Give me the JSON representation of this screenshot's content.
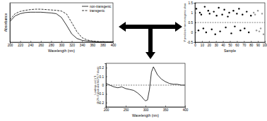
{
  "chart_data": [
    {
      "type": "line",
      "x_label": "Wavelength (nm)",
      "y_label": "Absorbance",
      "x": [
        200,
        210,
        220,
        230,
        240,
        250,
        260,
        270,
        280,
        290,
        300,
        310,
        320,
        330,
        340,
        350,
        360,
        370,
        380,
        390,
        400
      ],
      "xlim": [
        200,
        400
      ],
      "xticks": [
        200,
        220,
        240,
        260,
        280,
        300,
        320,
        340,
        360,
        380,
        400
      ],
      "ylim": [
        0,
        1.05
      ],
      "tick_labels": "x",
      "legend": "upper right",
      "series": [
        {
          "name": "non-transgenic",
          "color": "#000000",
          "line_style": "solid",
          "values": [
            0.55,
            0.7,
            0.76,
            0.79,
            0.8,
            0.8,
            0.8,
            0.79,
            0.78,
            0.76,
            0.66,
            0.45,
            0.22,
            0.1,
            0.05,
            0.03,
            0.02,
            0.01,
            0.01,
            0.01,
            0.01
          ]
        },
        {
          "name": "transgenic",
          "color": "#000000",
          "line_style": "dashed",
          "values": [
            0.6,
            0.76,
            0.82,
            0.85,
            0.87,
            0.88,
            0.88,
            0.87,
            0.86,
            0.85,
            0.83,
            0.75,
            0.52,
            0.28,
            0.12,
            0.06,
            0.03,
            0.02,
            0.01,
            0.01,
            0.01
          ]
        }
      ]
    },
    {
      "type": "scatter",
      "x_label": "Sample",
      "y_label": "Y predicted non-transgenic class",
      "xlim": [
        0,
        100
      ],
      "xticks": [
        0,
        10,
        20,
        30,
        40,
        50,
        60,
        70,
        80,
        90,
        100
      ],
      "ylim": [
        -0.5,
        1.5
      ],
      "yticks": [
        -0.5,
        0,
        0.5,
        1,
        1.5
      ],
      "threshold": 0.5,
      "series": [
        {
          "color": "#000000",
          "marker": "circle",
          "x": [
            2,
            5,
            7,
            9,
            12,
            14,
            16,
            19,
            21,
            24,
            27,
            29,
            31,
            34,
            36,
            39,
            42,
            44,
            47,
            49,
            52,
            55,
            57,
            60,
            63,
            65,
            68,
            71,
            74,
            77,
            80
          ],
          "values": [
            1.2,
            0.1,
            1.0,
            0.9,
            0.2,
            1.3,
            0.0,
            1.1,
            0.95,
            0.15,
            1.05,
            -0.1,
            0.85,
            1.25,
            0.05,
            0.9,
            1.15,
            0.25,
            0.8,
            1.0,
            -0.05,
            1.1,
            0.3,
            0.95,
            1.2,
            0.1,
            0.9,
            0.2,
            1.05,
            0.0,
            0.85
          ]
        },
        {
          "color": "#999999",
          "marker": "circle",
          "x": [
            84,
            86,
            88,
            90,
            92,
            94,
            96,
            98
          ],
          "values": [
            1.0,
            0.9,
            0.1,
            1.1,
            0.05,
            0.2,
            0.95,
            -0.1
          ]
        }
      ]
    },
    {
      "type": "line",
      "x_label": "Wavelength (nm)",
      "y_label": "Loadings on LV 1 (8.2% X block and 84.7% Y block)",
      "x": [
        200,
        210,
        220,
        230,
        240,
        250,
        260,
        270,
        280,
        290,
        295,
        300,
        305,
        310,
        315,
        320,
        330,
        340,
        350,
        360,
        370,
        380,
        390,
        400
      ],
      "xlim": [
        200,
        400
      ],
      "xticks": [
        200,
        250,
        300,
        350,
        400
      ],
      "ylim": [
        -0.25,
        0.25
      ],
      "yticks": [
        -0.2,
        -0.1,
        0,
        0.1,
        0.2
      ],
      "reference_line": 0,
      "series": [
        {
          "color": "#000000",
          "line_style": "solid",
          "values": [
            0.02,
            0.0,
            -0.02,
            -0.03,
            -0.02,
            -0.04,
            -0.05,
            -0.06,
            -0.09,
            -0.13,
            -0.16,
            -0.18,
            -0.17,
            -0.05,
            0.15,
            0.21,
            0.12,
            0.07,
            0.04,
            0.02,
            0.01,
            0.01,
            0.0,
            0.0
          ]
        }
      ]
    }
  ]
}
